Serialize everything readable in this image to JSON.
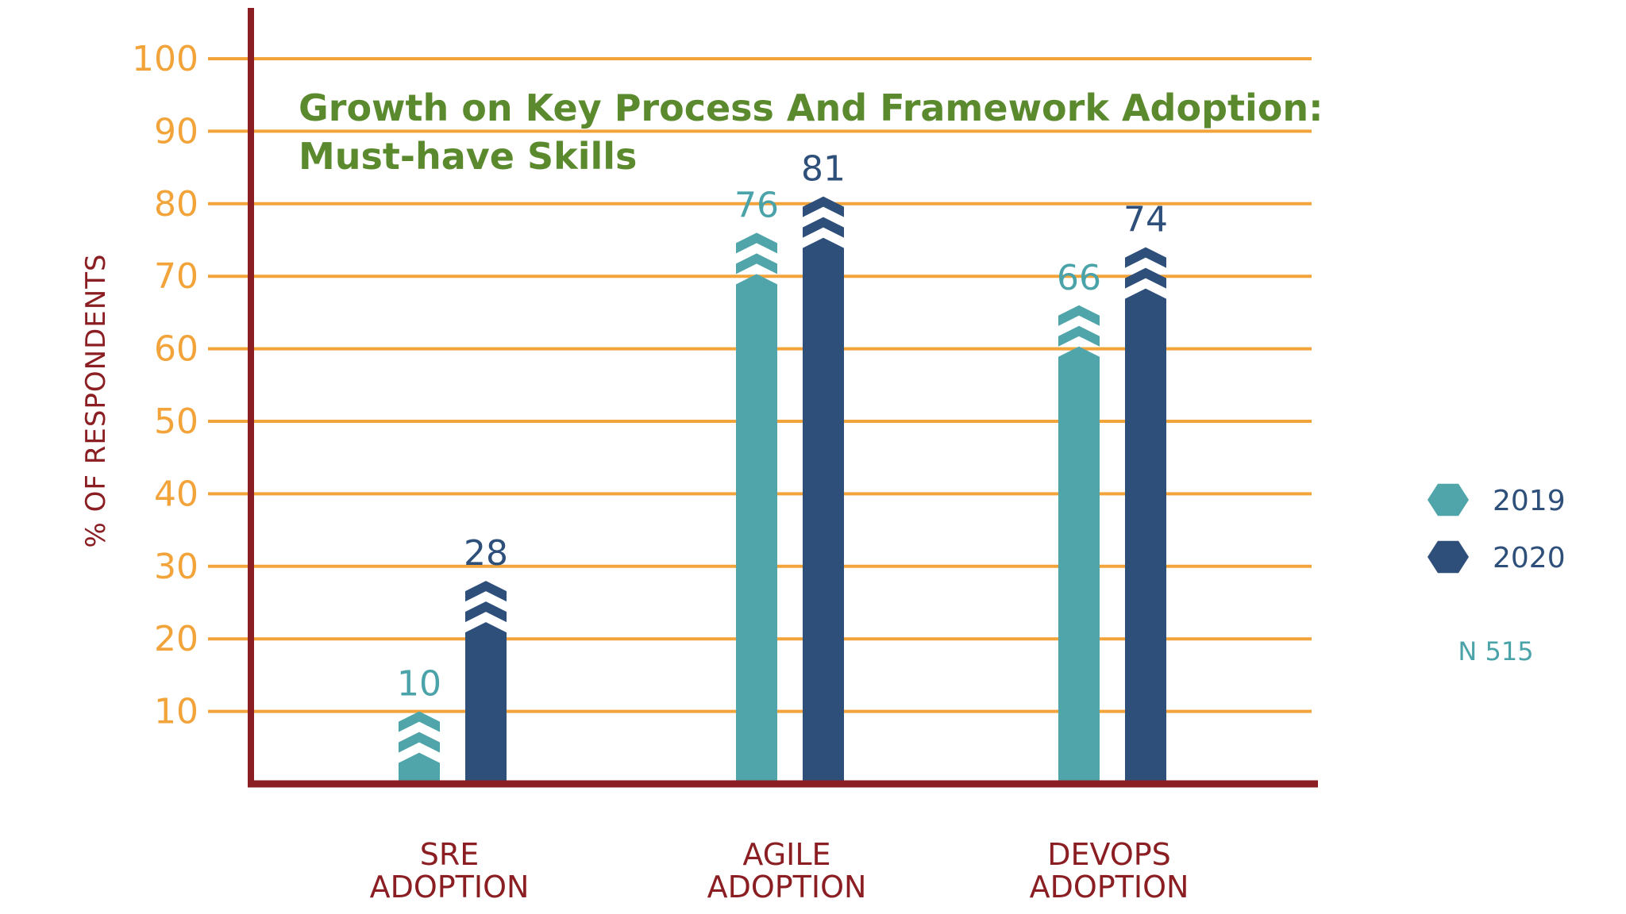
{
  "chart_data": {
    "type": "bar",
    "title": "Growth on Key Process And Framework Adoption:",
    "subtitle": "Must-have Skills",
    "ylabel": "% OF RESPONDENTS",
    "xlabel": "",
    "ylim": [
      0,
      100
    ],
    "yticks": [
      10,
      20,
      30,
      40,
      50,
      60,
      70,
      80,
      90,
      100
    ],
    "grid": true,
    "legend_position": "right",
    "categories": [
      [
        "SRE",
        "ADOPTION"
      ],
      [
        "AGILE",
        "ADOPTION"
      ],
      [
        "DEVOPS",
        "ADOPTION"
      ]
    ],
    "series": [
      {
        "name": "2019",
        "values": [
          10,
          76,
          66
        ],
        "color": "#4fa5aa",
        "label_color": "#4aa3a8"
      },
      {
        "name": "2020",
        "values": [
          28,
          81,
          74
        ],
        "color": "#2d4f7a",
        "label_color": "#2d4f7a"
      }
    ],
    "note": "N 515",
    "colors": {
      "grid": "#f2a43a",
      "axis": "#8b1e22",
      "title": "#5b8a2e"
    }
  }
}
